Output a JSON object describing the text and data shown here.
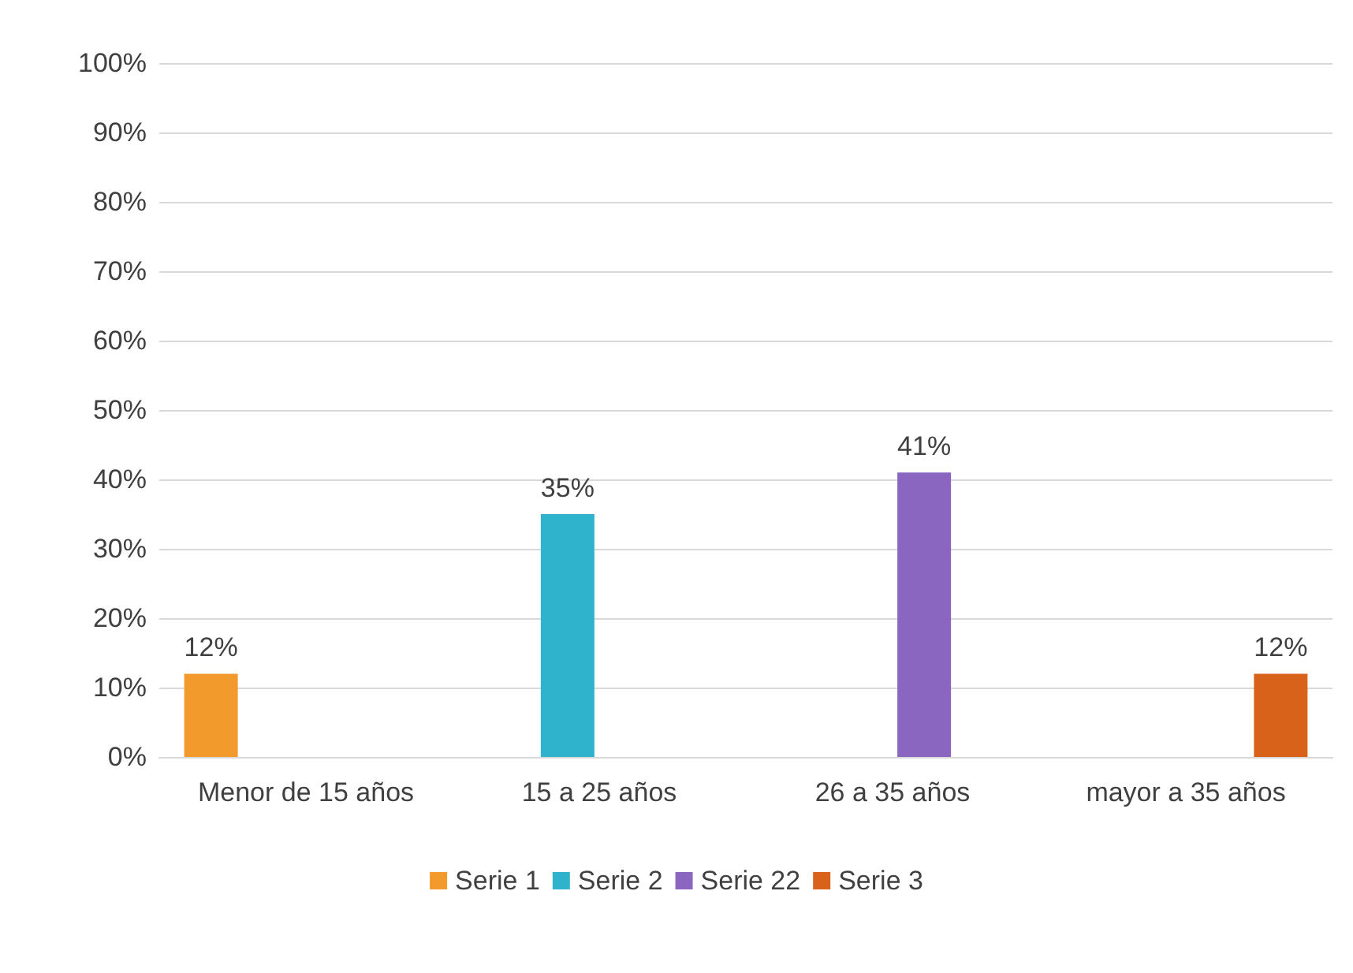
{
  "chart_data": {
    "type": "bar",
    "categories": [
      "Menor de 15 años",
      "15 a 25 años",
      "26 a 35 años",
      "mayor a 35 años"
    ],
    "series": [
      {
        "name": "Serie 1",
        "color": "#f39a2c",
        "values": [
          12,
          null,
          null,
          null
        ],
        "value_labels": [
          "12%",
          null,
          null,
          null
        ]
      },
      {
        "name": "Serie 2",
        "color": "#2fb3cc",
        "values": [
          null,
          35,
          null,
          null
        ],
        "value_labels": [
          null,
          "35%",
          null,
          null
        ]
      },
      {
        "name": "Serie 22",
        "color": "#8a66c0",
        "values": [
          null,
          null,
          41,
          null
        ],
        "value_labels": [
          null,
          null,
          "41%",
          null
        ]
      },
      {
        "name": "Serie 3",
        "color": "#d9621a",
        "values": [
          null,
          null,
          null,
          12
        ],
        "value_labels": [
          null,
          null,
          null,
          "12%"
        ]
      }
    ],
    "ylim": [
      0,
      100
    ],
    "yticks": [
      {
        "value": 0,
        "label": "0%"
      },
      {
        "value": 10,
        "label": "10%"
      },
      {
        "value": 20,
        "label": "20%"
      },
      {
        "value": 30,
        "label": "30%"
      },
      {
        "value": 40,
        "label": "40%"
      },
      {
        "value": 50,
        "label": "50%"
      },
      {
        "value": 60,
        "label": "60%"
      },
      {
        "value": 70,
        "label": "70%"
      },
      {
        "value": 80,
        "label": "80%"
      },
      {
        "value": 90,
        "label": "90%"
      },
      {
        "value": 100,
        "label": "100%"
      }
    ],
    "grid": "y",
    "legend": "bottom"
  }
}
